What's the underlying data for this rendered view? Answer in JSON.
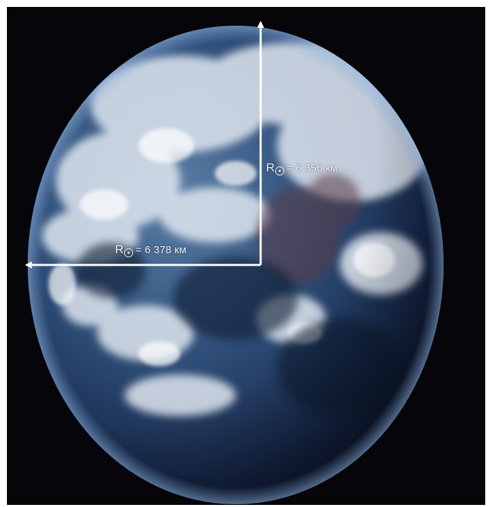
{
  "image": {
    "subject": "earth-globe",
    "background_color": "#05050a",
    "arrow_color": "#ffffff"
  },
  "labels": {
    "polar_radius": {
      "prefix": "R",
      "value": "= 6 356 км"
    },
    "equatorial_radius": {
      "prefix": "R",
      "value": "= 6 378 км"
    }
  }
}
